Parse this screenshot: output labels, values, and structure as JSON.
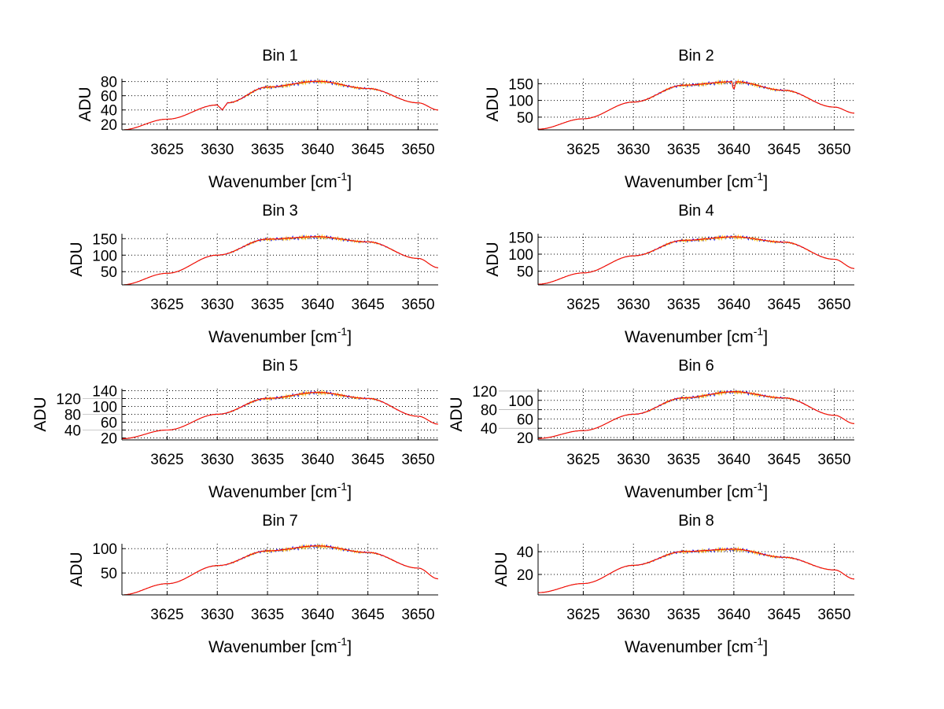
{
  "chart_data": [
    {
      "type": "line",
      "title": "Bin 1",
      "xlabel": "Wavenumber [cm",
      "xlabel_sup": "-1",
      "xlabel_end": "]",
      "ylabel": "ADU",
      "xlim": [
        3620.5,
        3652
      ],
      "ylim": [
        12,
        84
      ],
      "xticks": [
        3625,
        3630,
        3635,
        3640,
        3645,
        3650
      ],
      "yticks": [
        20,
        40,
        60,
        80
      ],
      "x": [
        3620.5,
        3625,
        3630,
        3630.5,
        3631,
        3635,
        3640,
        3645,
        3650,
        3652
      ],
      "y": [
        12,
        27,
        47,
        40,
        50,
        72,
        80,
        70,
        50,
        40
      ]
    },
    {
      "type": "line",
      "title": "Bin 2",
      "xlabel": "Wavenumber [cm",
      "xlabel_sup": "-1",
      "xlabel_end": "]",
      "ylabel": "ADU",
      "xlim": [
        3620.5,
        3652
      ],
      "ylim": [
        12,
        165
      ],
      "xticks": [
        3625,
        3630,
        3635,
        3640,
        3645,
        3650
      ],
      "yticks": [
        50,
        100,
        150
      ],
      "x": [
        3620.5,
        3625,
        3630,
        3635,
        3639.8,
        3640,
        3640.2,
        3645,
        3650,
        3652
      ],
      "y": [
        14,
        45,
        95,
        145,
        155,
        130,
        155,
        130,
        80,
        62
      ]
    },
    {
      "type": "line",
      "title": "Bin 3",
      "xlabel": "Wavenumber [cm",
      "xlabel_sup": "-1",
      "xlabel_end": "]",
      "ylabel": "ADU",
      "xlim": [
        3620.5,
        3652
      ],
      "ylim": [
        10,
        165
      ],
      "xticks": [
        3625,
        3630,
        3635,
        3640,
        3645,
        3650
      ],
      "yticks": [
        50,
        100,
        150
      ],
      "x": [
        3620.5,
        3625,
        3630,
        3635,
        3640,
        3645,
        3650,
        3652
      ],
      "y": [
        10,
        45,
        100,
        148,
        155,
        140,
        90,
        62
      ]
    },
    {
      "type": "line",
      "title": "Bin 4",
      "xlabel": "Wavenumber [cm",
      "xlabel_sup": "-1",
      "xlabel_end": "]",
      "ylabel": "ADU",
      "xlim": [
        3620.5,
        3652
      ],
      "ylim": [
        10,
        160
      ],
      "xticks": [
        3625,
        3630,
        3635,
        3640,
        3645,
        3650
      ],
      "yticks": [
        50,
        100,
        150
      ],
      "x": [
        3620.5,
        3625,
        3630,
        3635,
        3640,
        3645,
        3650,
        3652
      ],
      "y": [
        12,
        45,
        95,
        140,
        150,
        135,
        85,
        58
      ]
    },
    {
      "type": "line",
      "title": "Bin 5",
      "xlabel": "Wavenumber [cm",
      "xlabel_sup": "-1",
      "xlabel_end": "]",
      "ylabel": "ADU",
      "xlim": [
        3620.5,
        3652
      ],
      "ylim": [
        15,
        145
      ],
      "xticks": [
        3625,
        3630,
        3635,
        3640,
        3645,
        3650
      ],
      "yticks": [
        20,
        40,
        60,
        80,
        100,
        120,
        140
      ],
      "x": [
        3620.5,
        3625,
        3630,
        3635,
        3640,
        3645,
        3650,
        3652
      ],
      "y": [
        18,
        40,
        80,
        120,
        135,
        120,
        75,
        55
      ]
    },
    {
      "type": "line",
      "title": "Bin 6",
      "xlabel": "Wavenumber [cm",
      "xlabel_sup": "-1",
      "xlabel_end": "]",
      "ylabel": "ADU",
      "xlim": [
        3620.5,
        3652
      ],
      "ylim": [
        15,
        125
      ],
      "xticks": [
        3625,
        3630,
        3635,
        3640,
        3645,
        3650
      ],
      "yticks": [
        20,
        40,
        60,
        80,
        100,
        120
      ],
      "x": [
        3620.5,
        3625,
        3630,
        3635,
        3640,
        3645,
        3650,
        3652
      ],
      "y": [
        18,
        35,
        70,
        105,
        118,
        105,
        68,
        50
      ]
    },
    {
      "type": "line",
      "title": "Bin 7",
      "xlabel": "Wavenumber [cm",
      "xlabel_sup": "-1",
      "xlabel_end": "]",
      "ylabel": "ADU",
      "xlim": [
        3620.5,
        3652
      ],
      "ylim": [
        5,
        110
      ],
      "xticks": [
        3625,
        3630,
        3635,
        3640,
        3645,
        3650
      ],
      "yticks": [
        50,
        100
      ],
      "x": [
        3620.5,
        3625,
        3630,
        3635,
        3640,
        3645,
        3650,
        3652
      ],
      "y": [
        5,
        28,
        65,
        95,
        105,
        92,
        60,
        38
      ]
    },
    {
      "type": "line",
      "title": "Bin 8",
      "xlabel": "Wavenumber [cm",
      "xlabel_sup": "-1",
      "xlabel_end": "]",
      "ylabel": "ADU",
      "xlim": [
        3620.5,
        3652
      ],
      "ylim": [
        2,
        47
      ],
      "xticks": [
        3625,
        3630,
        3635,
        3640,
        3645,
        3650
      ],
      "yticks": [
        20,
        40
      ],
      "x": [
        3620.5,
        3625,
        3630,
        3635,
        3640,
        3645,
        3650,
        3652
      ],
      "y": [
        4,
        12,
        28,
        40,
        42,
        35,
        24,
        16
      ]
    }
  ],
  "colors": {
    "main": "#ff0000",
    "overlay1": "#0000ff",
    "overlay2": "#ffbf00",
    "grid": "#000000"
  }
}
